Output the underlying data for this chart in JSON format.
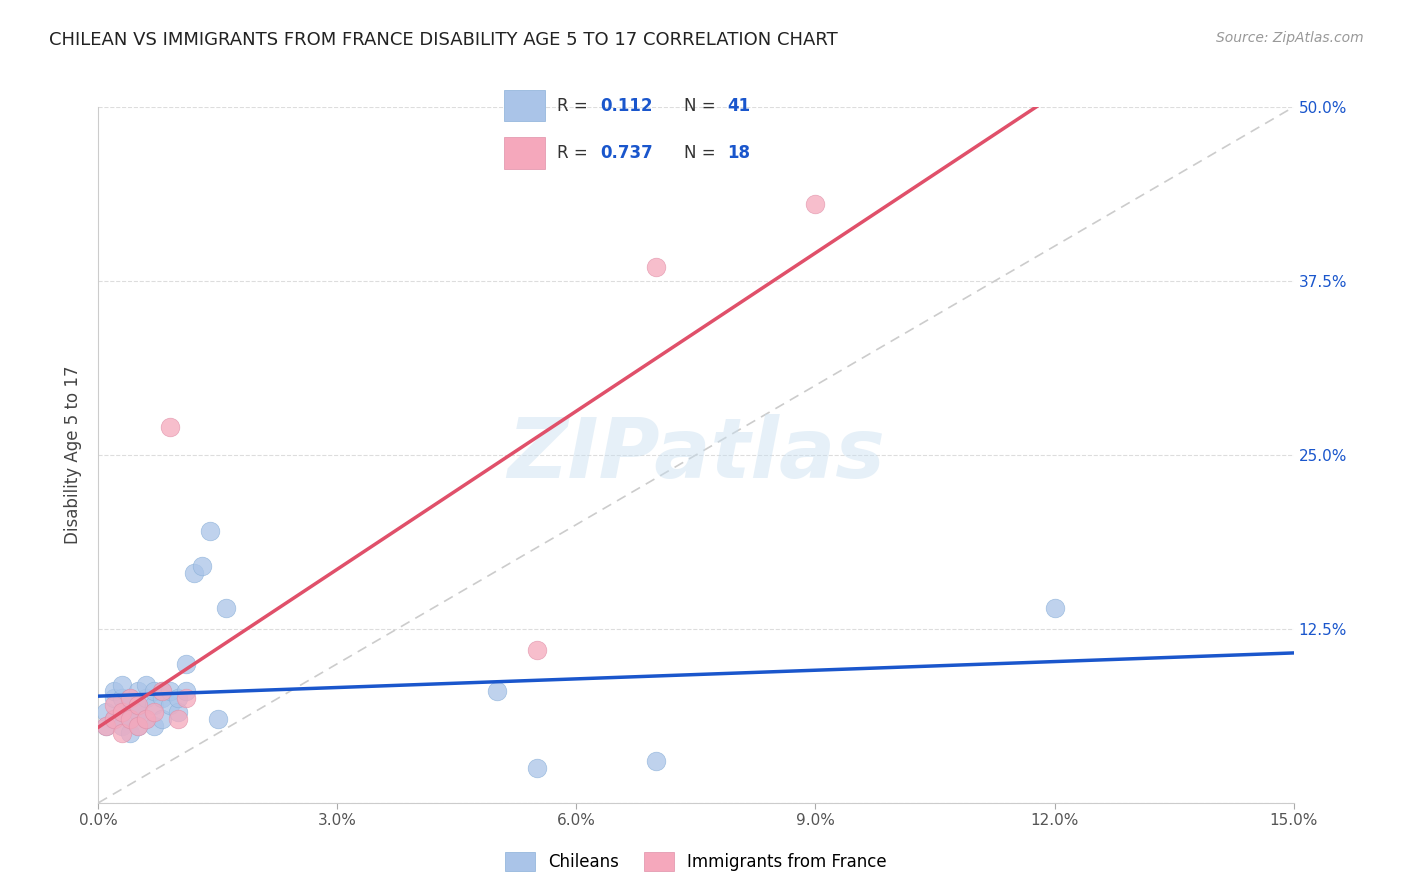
{
  "title": "CHILEAN VS IMMIGRANTS FROM FRANCE DISABILITY AGE 5 TO 17 CORRELATION CHART",
  "source": "Source: ZipAtlas.com",
  "ylabel": "Disability Age 5 to 17",
  "xlim": [
    0.0,
    0.15
  ],
  "ylim": [
    0.0,
    0.5
  ],
  "xticks": [
    0.0,
    0.03,
    0.06,
    0.09,
    0.12,
    0.15
  ],
  "xtick_labels": [
    "0.0%",
    "3.0%",
    "6.0%",
    "9.0%",
    "12.0%",
    "15.0%"
  ],
  "yticks": [
    0.0,
    0.125,
    0.25,
    0.375,
    0.5
  ],
  "ytick_labels_right": [
    "",
    "12.5%",
    "25.0%",
    "37.5%",
    "50.0%"
  ],
  "legend_labels": [
    "Chileans",
    "Immigrants from France"
  ],
  "legend_R": [
    "0.112",
    "0.737"
  ],
  "legend_N": [
    "41",
    "18"
  ],
  "chilean_color": "#aac4e8",
  "france_color": "#f5a8bc",
  "chilean_line_color": "#1a56cc",
  "france_line_color": "#e0506a",
  "diagonal_color": "#cccccc",
  "watermark": "ZIPatlas",
  "chilean_x": [
    0.001,
    0.001,
    0.002,
    0.002,
    0.002,
    0.003,
    0.003,
    0.003,
    0.003,
    0.004,
    0.004,
    0.004,
    0.004,
    0.005,
    0.005,
    0.005,
    0.005,
    0.006,
    0.006,
    0.006,
    0.007,
    0.007,
    0.007,
    0.008,
    0.008,
    0.008,
    0.009,
    0.009,
    0.01,
    0.01,
    0.011,
    0.011,
    0.012,
    0.013,
    0.014,
    0.015,
    0.016,
    0.05,
    0.055,
    0.07,
    0.12
  ],
  "chilean_y": [
    0.055,
    0.065,
    0.06,
    0.075,
    0.08,
    0.055,
    0.065,
    0.075,
    0.085,
    0.05,
    0.06,
    0.07,
    0.075,
    0.055,
    0.065,
    0.07,
    0.08,
    0.06,
    0.075,
    0.085,
    0.055,
    0.07,
    0.08,
    0.06,
    0.075,
    0.08,
    0.07,
    0.08,
    0.065,
    0.075,
    0.08,
    0.1,
    0.165,
    0.17,
    0.195,
    0.06,
    0.14,
    0.08,
    0.025,
    0.03,
    0.14
  ],
  "france_x": [
    0.001,
    0.002,
    0.002,
    0.003,
    0.003,
    0.004,
    0.004,
    0.005,
    0.005,
    0.006,
    0.007,
    0.008,
    0.009,
    0.01,
    0.011,
    0.055,
    0.07,
    0.09
  ],
  "france_y": [
    0.055,
    0.06,
    0.07,
    0.05,
    0.065,
    0.06,
    0.075,
    0.055,
    0.07,
    0.06,
    0.065,
    0.08,
    0.27,
    0.06,
    0.075,
    0.11,
    0.385,
    0.43
  ],
  "background_color": "#ffffff",
  "grid_color": "#dddddd"
}
